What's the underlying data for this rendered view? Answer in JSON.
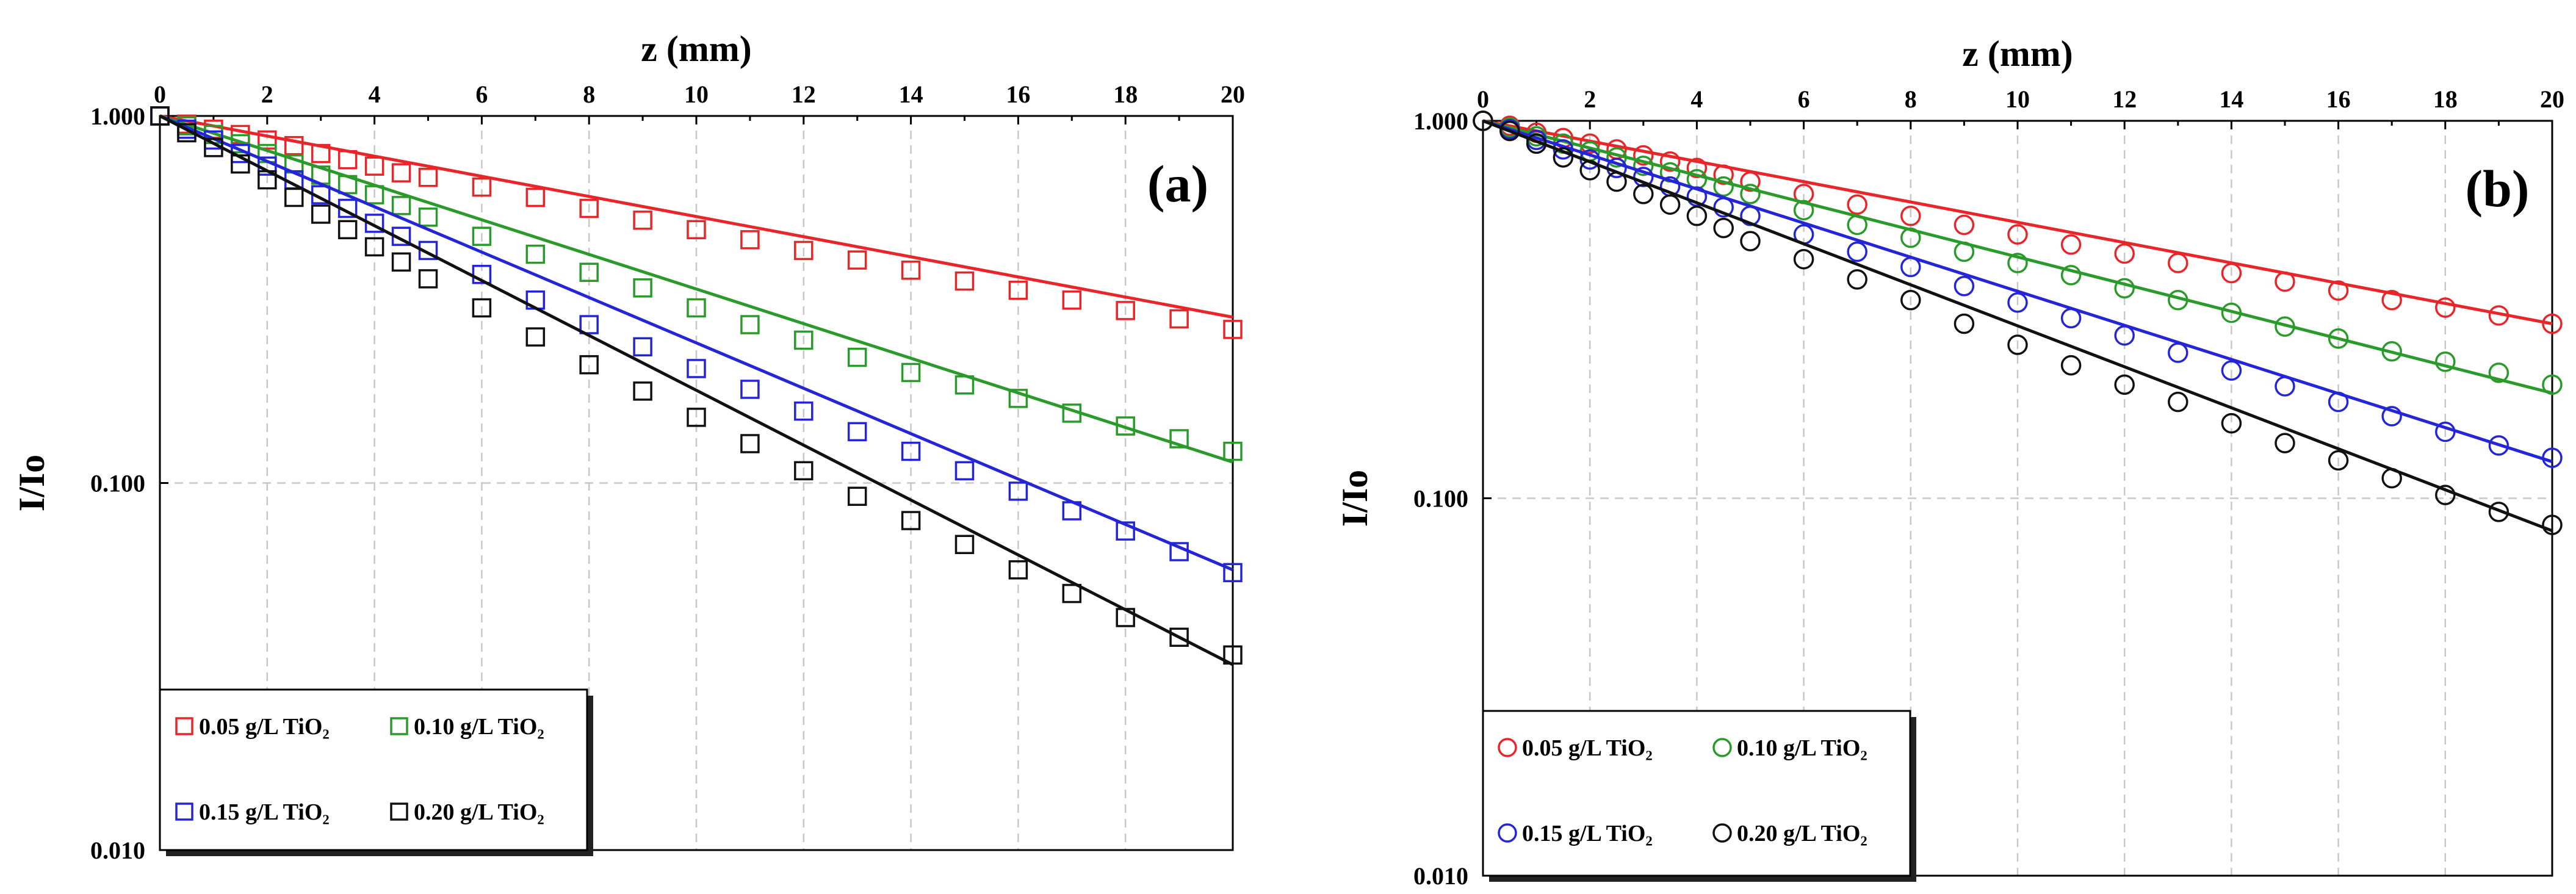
{
  "chart_data": [
    {
      "type": "scatter",
      "panel_label": "(a)",
      "xlabel": "z (mm)",
      "ylabel": "I/Io",
      "x_axis_position": "top",
      "y_scale": "log",
      "xlim": [
        0,
        20
      ],
      "ylim": [
        0.01,
        1.0
      ],
      "x_ticks": [
        "0",
        "2",
        "4",
        "6",
        "8",
        "10",
        "12",
        "14",
        "16",
        "18",
        "20"
      ],
      "y_ticks": [
        "0.010",
        "0.100",
        "1.000"
      ],
      "grid": true,
      "legend_position": "bottom-left",
      "marker": "square",
      "series": [
        {
          "name": "0.05 g/L TiO₂",
          "color": "#e8262a",
          "x": [
            0,
            0.5,
            1,
            1.5,
            2,
            2.5,
            3,
            3.5,
            4,
            4.5,
            5,
            6,
            7,
            8,
            9,
            10,
            11,
            12,
            13,
            14,
            15,
            16,
            17,
            18,
            19,
            20
          ],
          "y": [
            1.0,
            0.95,
            0.92,
            0.89,
            0.86,
            0.83,
            0.79,
            0.76,
            0.73,
            0.7,
            0.68,
            0.64,
            0.6,
            0.56,
            0.52,
            0.49,
            0.46,
            0.43,
            0.405,
            0.38,
            0.355,
            0.335,
            0.315,
            0.295,
            0.28,
            0.262
          ],
          "fit": [
            1.0,
            0.283
          ]
        },
        {
          "name": "0.10 g/L TiO₂",
          "color": "#2a9a2a",
          "x": [
            0,
            0.5,
            1,
            1.5,
            2,
            2.5,
            3,
            3.5,
            4,
            4.5,
            5,
            6,
            7,
            8,
            9,
            10,
            11,
            12,
            13,
            14,
            15,
            16,
            17,
            18,
            19,
            20
          ],
          "y": [
            1.0,
            0.94,
            0.89,
            0.84,
            0.79,
            0.74,
            0.69,
            0.65,
            0.61,
            0.57,
            0.53,
            0.47,
            0.42,
            0.375,
            0.34,
            0.3,
            0.27,
            0.245,
            0.22,
            0.2,
            0.185,
            0.17,
            0.155,
            0.143,
            0.132,
            0.122
          ],
          "fit": [
            1.0,
            0.114
          ]
        },
        {
          "name": "0.15 g/L TiO₂",
          "color": "#2525d8",
          "x": [
            0,
            0.5,
            1,
            1.5,
            2,
            2.5,
            3,
            3.5,
            4,
            4.5,
            5,
            6,
            7,
            8,
            9,
            10,
            11,
            12,
            13,
            14,
            15,
            16,
            17,
            18,
            19,
            20
          ],
          "y": [
            1.0,
            0.92,
            0.86,
            0.79,
            0.73,
            0.67,
            0.61,
            0.56,
            0.51,
            0.47,
            0.43,
            0.37,
            0.315,
            0.27,
            0.235,
            0.205,
            0.18,
            0.157,
            0.138,
            0.122,
            0.108,
            0.095,
            0.084,
            0.074,
            0.065,
            0.057
          ],
          "fit": [
            1.0,
            0.058
          ]
        },
        {
          "name": "0.20 g/L TiO₂",
          "color": "#111111",
          "x": [
            0,
            0.5,
            1,
            1.5,
            2,
            2.5,
            3,
            3.5,
            4,
            4.5,
            5,
            6,
            7,
            8,
            9,
            10,
            11,
            12,
            13,
            14,
            15,
            16,
            17,
            18,
            19,
            20
          ],
          "y": [
            1.0,
            0.9,
            0.82,
            0.74,
            0.67,
            0.6,
            0.54,
            0.49,
            0.44,
            0.4,
            0.36,
            0.3,
            0.25,
            0.21,
            0.178,
            0.151,
            0.128,
            0.108,
            0.092,
            0.079,
            0.068,
            0.058,
            0.05,
            0.043,
            0.038,
            0.034
          ],
          "fit": [
            1.0,
            0.032
          ]
        }
      ]
    },
    {
      "type": "scatter",
      "panel_label": "(b)",
      "xlabel": "z (mm)",
      "ylabel": "I/Io",
      "x_axis_position": "top",
      "y_scale": "log",
      "xlim": [
        0,
        20
      ],
      "ylim": [
        0.01,
        1.0
      ],
      "x_ticks": [
        "0",
        "2",
        "4",
        "6",
        "8",
        "10",
        "12",
        "14",
        "16",
        "18",
        "20"
      ],
      "y_ticks": [
        "0.010",
        "0.100",
        "1.000"
      ],
      "grid": true,
      "legend_position": "bottom-left",
      "marker": "circle",
      "series": [
        {
          "name": "0.05 g/L TiO₂",
          "color": "#e8262a",
          "x": [
            0,
            0.5,
            1,
            1.5,
            2,
            2.5,
            3,
            3.5,
            4,
            4.5,
            5,
            6,
            7,
            8,
            9,
            10,
            11,
            12,
            13,
            14,
            15,
            16,
            17,
            18,
            19,
            20
          ],
          "y": [
            1.0,
            0.97,
            0.93,
            0.9,
            0.87,
            0.84,
            0.81,
            0.78,
            0.75,
            0.72,
            0.69,
            0.64,
            0.6,
            0.56,
            0.53,
            0.5,
            0.47,
            0.445,
            0.42,
            0.395,
            0.375,
            0.355,
            0.335,
            0.32,
            0.305,
            0.29
          ],
          "fit": [
            1.0,
            0.29
          ]
        },
        {
          "name": "0.10 g/L TiO₂",
          "color": "#2a9a2a",
          "x": [
            0,
            0.5,
            1,
            1.5,
            2,
            2.5,
            3,
            3.5,
            4,
            4.5,
            5,
            6,
            7,
            8,
            9,
            10,
            11,
            12,
            13,
            14,
            15,
            16,
            17,
            18,
            19,
            20
          ],
          "y": [
            1.0,
            0.96,
            0.91,
            0.87,
            0.83,
            0.8,
            0.76,
            0.73,
            0.7,
            0.67,
            0.64,
            0.58,
            0.53,
            0.49,
            0.45,
            0.42,
            0.39,
            0.36,
            0.335,
            0.31,
            0.285,
            0.265,
            0.245,
            0.23,
            0.215,
            0.2
          ],
          "fit": [
            1.0,
            0.19
          ]
        },
        {
          "name": "0.15 g/L TiO₂",
          "color": "#2525d8",
          "x": [
            0,
            0.5,
            1,
            1.5,
            2,
            2.5,
            3,
            3.5,
            4,
            4.5,
            5,
            6,
            7,
            8,
            9,
            10,
            11,
            12,
            13,
            14,
            15,
            16,
            17,
            18,
            19,
            20
          ],
          "y": [
            1.0,
            0.95,
            0.89,
            0.84,
            0.79,
            0.75,
            0.71,
            0.67,
            0.63,
            0.59,
            0.56,
            0.5,
            0.45,
            0.41,
            0.365,
            0.33,
            0.3,
            0.27,
            0.243,
            0.218,
            0.198,
            0.18,
            0.165,
            0.15,
            0.138,
            0.128
          ],
          "fit": [
            1.0,
            0.125
          ]
        },
        {
          "name": "0.20 g/L TiO₂",
          "color": "#111111",
          "x": [
            0,
            0.5,
            1,
            1.5,
            2,
            2.5,
            3,
            3.5,
            4,
            4.5,
            5,
            6,
            7,
            8,
            9,
            10,
            11,
            12,
            13,
            14,
            15,
            16,
            17,
            18,
            19,
            20
          ],
          "y": [
            1.0,
            0.94,
            0.87,
            0.8,
            0.74,
            0.69,
            0.64,
            0.6,
            0.56,
            0.52,
            0.48,
            0.43,
            0.38,
            0.335,
            0.29,
            0.255,
            0.225,
            0.2,
            0.18,
            0.158,
            0.14,
            0.126,
            0.113,
            0.102,
            0.092,
            0.085
          ],
          "fit": [
            1.0,
            0.082
          ]
        }
      ]
    }
  ]
}
